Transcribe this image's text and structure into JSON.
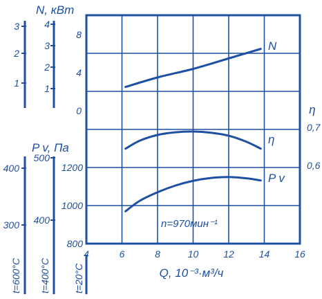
{
  "colors": {
    "ink": "#1d4fa3",
    "background": "#ffffff"
  },
  "chart_data": {
    "type": "line",
    "x": {
      "label": "Q, 10⁻³·м³/ч",
      "range": [
        4,
        16
      ],
      "ticks": [
        "4",
        "6",
        "8",
        "10",
        "12",
        "14",
        "16"
      ]
    },
    "y_scales": {
      "power_outer": {
        "label": "N, кВт",
        "ticks": [
          "3",
          "2",
          "1"
        ],
        "values": [
          3,
          2,
          1
        ]
      },
      "power_inner": {
        "ticks": [
          "4",
          "3",
          "2",
          "1"
        ],
        "values": [
          4,
          3,
          2,
          1
        ]
      },
      "power_main": {
        "ticks": [
          "8",
          "4",
          "0"
        ],
        "values": [
          8,
          4,
          0
        ]
      },
      "efficiency": {
        "label": "η",
        "ticks": [
          "0,7",
          "0,6"
        ],
        "values": [
          0.7,
          0.6
        ]
      },
      "pressure_main": {
        "ticks": [
          "1200",
          "1000",
          "800"
        ],
        "values": [
          1200,
          1000,
          800
        ]
      },
      "pressure_mid": {
        "label": "P v, Па",
        "ticks": [
          "500",
          "400"
        ],
        "values": [
          500,
          400
        ]
      },
      "pressure_outer": {
        "ticks": [
          "400",
          "300"
        ],
        "values": [
          400,
          300
        ]
      }
    },
    "scale_temperatures": [
      "t=600°C",
      "t=400°C",
      "t=20°C"
    ],
    "series": [
      {
        "name": "N",
        "x": [
          6.2,
          8,
          10,
          12,
          13.8
        ],
        "y": [
          2.5,
          3.5,
          4.4,
          5.5,
          6.5
        ]
      },
      {
        "name": "η",
        "x": [
          6.2,
          7,
          8,
          9,
          10,
          11,
          12,
          13,
          13.8
        ],
        "y": [
          0.644,
          0.665,
          0.68,
          0.687,
          0.689,
          0.686,
          0.678,
          0.662,
          0.644
        ]
      },
      {
        "name": "P v",
        "x": [
          6.2,
          7,
          8,
          9,
          10,
          11,
          12,
          13,
          13.8
        ],
        "y": [
          970,
          1025,
          1070,
          1105,
          1130,
          1145,
          1150,
          1143,
          1132
        ]
      }
    ],
    "annotation": "n=970мин⁻¹",
    "grid": true
  }
}
